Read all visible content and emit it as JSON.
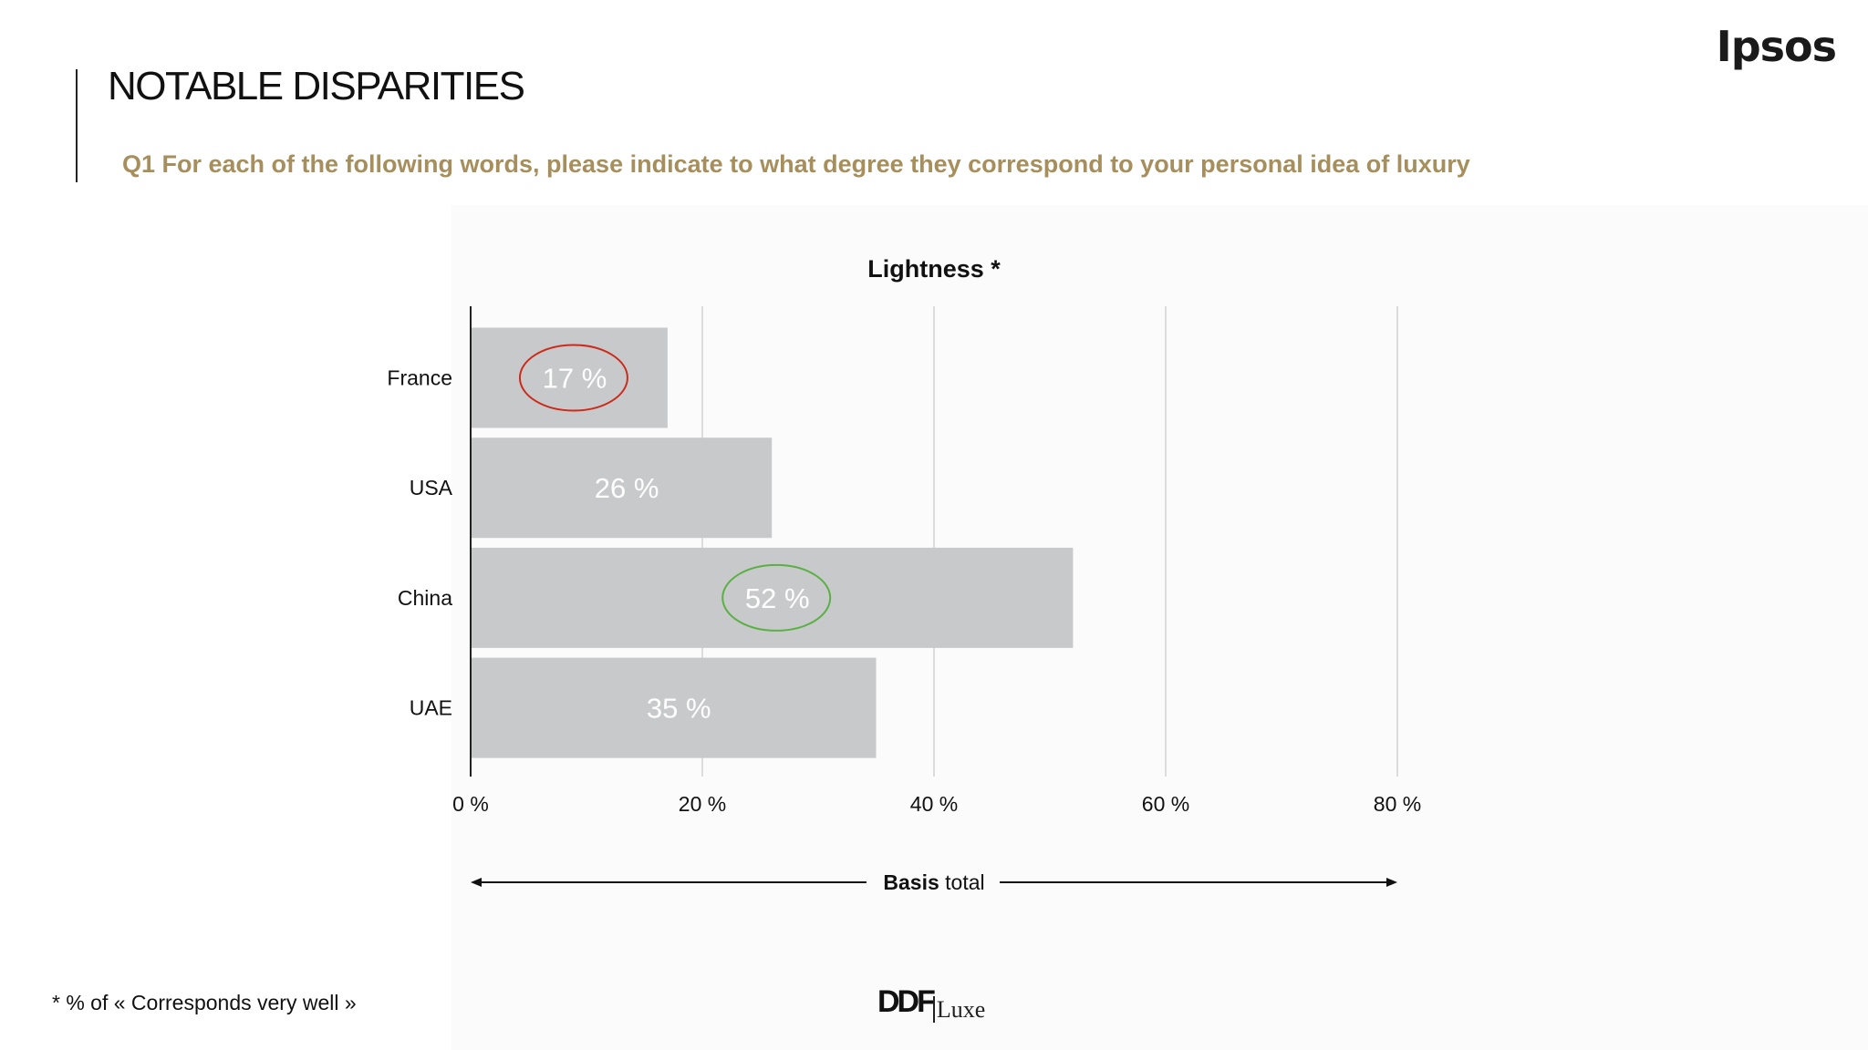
{
  "header": {
    "title": "NOTABLE DISPARITIES",
    "question": "Q1 For each of the following words, please indicate to what degree they correspond to your personal idea of luxury",
    "logo": "Ipsos"
  },
  "footer": {
    "footnote": "* % of « Corresponds very well »",
    "brand_main": "DDF",
    "brand_sub": "Luxe"
  },
  "chart_data": {
    "type": "bar",
    "orientation": "horizontal",
    "title": "Lightness *",
    "categories": [
      "France",
      "USA",
      "China",
      "UAE"
    ],
    "values": [
      17,
      26,
      52,
      35
    ],
    "data_labels": [
      "17 %",
      "26 %",
      "52 %",
      "35 %"
    ],
    "xlim": [
      0,
      80
    ],
    "x_ticks": [
      "0 %",
      "20 %",
      "40 %",
      "60 %",
      "80 %"
    ],
    "x_tick_values": [
      0,
      20,
      40,
      60,
      80
    ],
    "grid": "vertical",
    "basis_bold": "Basis",
    "basis_rest": " total",
    "highlights": [
      {
        "category": "France",
        "color": "#cc2a1a"
      },
      {
        "category": "China",
        "color": "#5ab044"
      }
    ],
    "bar_color": "#c8c9cb"
  }
}
